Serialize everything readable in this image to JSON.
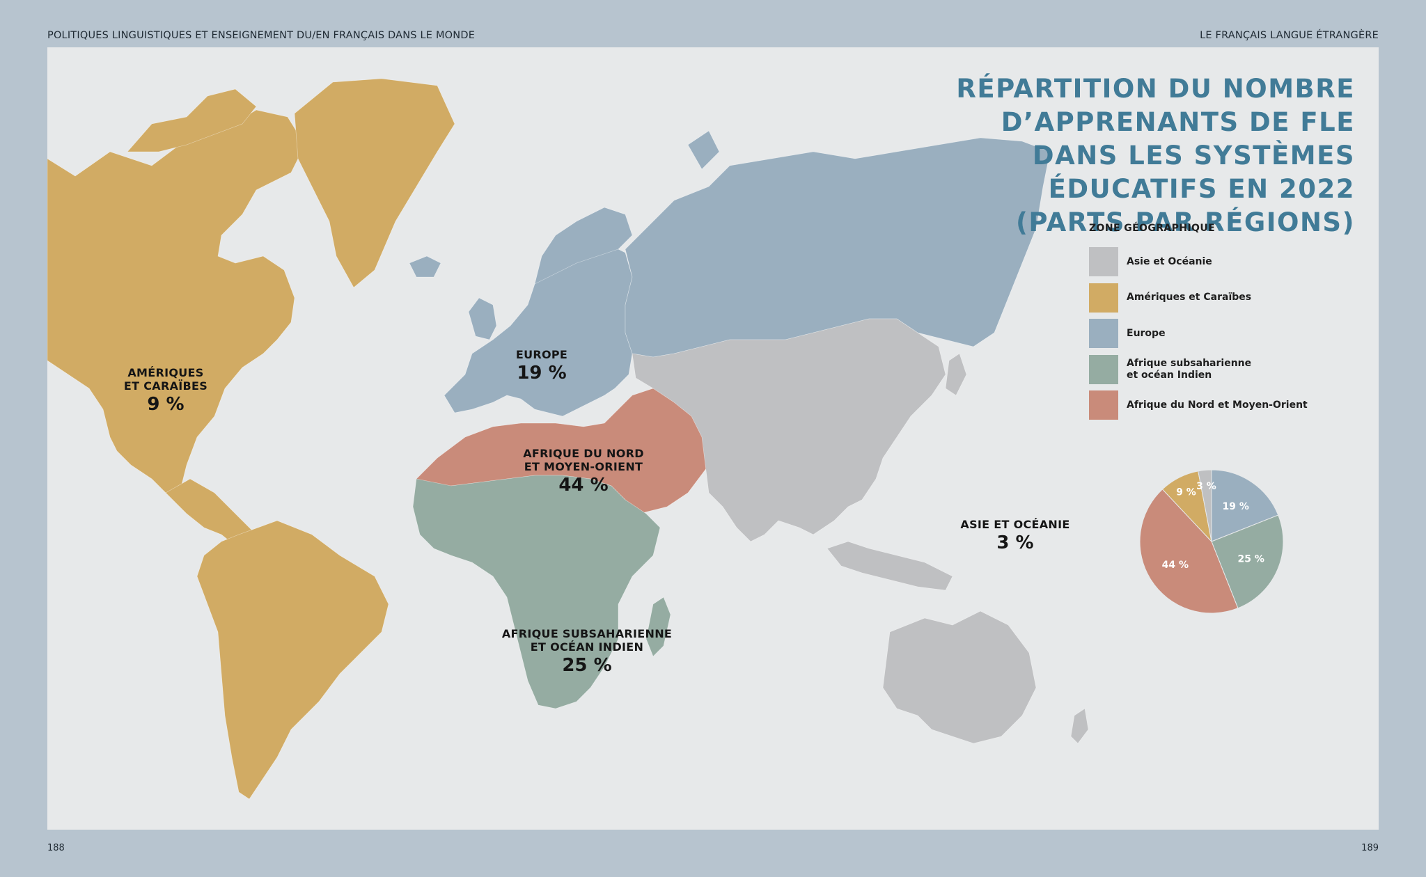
{
  "header": {
    "left": "POLITIQUES LINGUISTIQUES ET ENSEIGNEMENT DU/EN FRANÇAIS DANS LE MONDE",
    "right": "LE FRANÇAIS LANGUE ÉTRANGÈRE"
  },
  "footer": {
    "page_left": "188",
    "page_right": "189"
  },
  "title_lines": [
    "RÉPARTITION DU NOMBRE",
    "D’APPRENANTS DE FLE",
    "DANS LES SYSTÈMES",
    "ÉDUCATIFS EN 2022",
    "(PARTS PAR RÉGIONS)"
  ],
  "colors": {
    "asie": "#bfc0c2",
    "ameriques": "#d1ab64",
    "europe": "#9aafbf",
    "afrique_sub": "#95aca2",
    "afrique_nord": "#c98b7a",
    "title": "#417b97",
    "ocean": "#e7e9ea"
  },
  "map_labels": {
    "ameriques": {
      "name": "AMÉRIQUES\nET CARAÏBES",
      "pct": "9 %"
    },
    "europe": {
      "name": "EUROPE",
      "pct": "19 %"
    },
    "afrique_nord": {
      "name": "AFRIQUE DU NORD\nET MOYEN-ORIENT",
      "pct": "44 %"
    },
    "afrique_sub": {
      "name": "AFRIQUE SUBSAHARIENNE\nET OCÉAN INDIEN",
      "pct": "25 %"
    },
    "asie": {
      "name": "ASIE ET OCÉANIE",
      "pct": "3 %"
    }
  },
  "legend": {
    "title": "ZONE GÉOGRAPHIQUE",
    "items": [
      {
        "label": "Asie et Océanie",
        "color": "#bfc0c2"
      },
      {
        "label": "Amériques et Caraïbes",
        "color": "#d1ab64"
      },
      {
        "label": "Europe",
        "color": "#9aafbf"
      },
      {
        "label": "Afrique subsaharienne\net océan Indien",
        "color": "#95aca2"
      },
      {
        "label": "Afrique du Nord et Moyen-Orient",
        "color": "#c98b7a"
      }
    ]
  },
  "chart_data": {
    "type": "pie",
    "slices": [
      {
        "name": "Europe",
        "value": 19,
        "label": "19 %",
        "color": "#9aafbf"
      },
      {
        "name": "Afrique subsaharienne et océan Indien",
        "value": 25,
        "label": "25 %",
        "color": "#95aca2"
      },
      {
        "name": "Afrique du Nord et Moyen-Orient",
        "value": 44,
        "label": "44 %",
        "color": "#c98b7a"
      },
      {
        "name": "Amériques et Caraïbes",
        "value": 9,
        "label": "9 %",
        "color": "#d1ab64"
      },
      {
        "name": "Asie et Océanie",
        "value": 3,
        "label": "3 %",
        "color": "#bfc0c2"
      }
    ]
  }
}
